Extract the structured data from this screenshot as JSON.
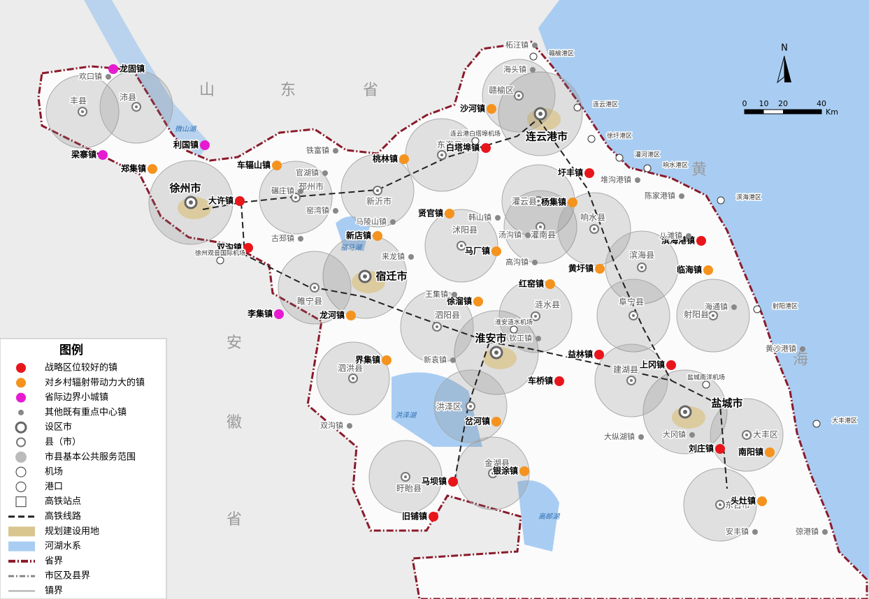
{
  "legend": {
    "title": "图例",
    "items": [
      "战略区位较好的镇",
      "对乡村辐射带动力大的镇",
      "省际边界小城镇",
      "其他既有重点中心镇",
      "设区市",
      "县（市）",
      "市县基本公共服务范围",
      "机场",
      "港口",
      "高铁站点",
      "高铁线路",
      "规划建设用地",
      "河湖水系",
      "省界",
      "市区及县界",
      "镇界"
    ]
  },
  "regions": [
    "山",
    "东",
    "省",
    "安",
    "徽",
    "省",
    "黄",
    "海"
  ],
  "cities": [
    "徐州市",
    "宿迁市",
    "淮安市",
    "连云港市",
    "盐城市"
  ],
  "counties": [
    "丰县",
    "沛县",
    "邳州市",
    "新沂市",
    "睢宁县",
    "东海县",
    "赣榆区",
    "灌云县",
    "灌南县",
    "沭阳县",
    "响水县",
    "滨海县",
    "阜宁县",
    "射阳县",
    "建湖县",
    "涟水县",
    "泗阳县",
    "泗洪县",
    "洪泽区",
    "金湖县",
    "盱眙县",
    "大丰区",
    "东台市"
  ],
  "red_towns": [
    "大许镇",
    "双沟镇",
    "白塔埠镇",
    "圩丰镇",
    "滨海港镇",
    "益林镇",
    "上冈镇",
    "车桥镇",
    "刘庄镇",
    "马坝镇",
    "旧铺镇"
  ],
  "orange_towns": [
    "郑集镇",
    "车辐山镇",
    "沙河镇",
    "桃林镇",
    "贤官镇",
    "新店镇",
    "马厂镇",
    "杨集镇",
    "黄圩镇",
    "临海镇",
    "徐溜镇",
    "红窑镇",
    "龙河镇",
    "界集镇",
    "岔河镇",
    "银涂镇",
    "南阳镇",
    "头灶镇"
  ],
  "border_towns": [
    "龙固镇",
    "利国镇",
    "梁寨镇",
    "李集镇"
  ],
  "other_towns": [
    "欢口镇",
    "柘汪镇",
    "海头镇",
    "铁富镇",
    "官湖镇",
    "碾庄镇",
    "窑湾镇",
    "古邳镇",
    "马陵山镇",
    "来龙镇",
    "韩山镇",
    "汤沟镇",
    "高沟镇",
    "堆沟港镇",
    "陈家港镇",
    "八滩镇",
    "王集镇",
    "钦工镇",
    "新袁镇",
    "双沟镇",
    "大纵湖镇",
    "大冈镇",
    "黄沙港镇",
    "海通镇",
    "安丰镇",
    "弶港镇"
  ],
  "ports": [
    "赣榆港区",
    "连云港区",
    "徐圩港区",
    "灌河港区",
    "响水港区",
    "滨海港区",
    "射阳港区",
    "大丰港区"
  ],
  "airports": [
    "连云港白塔埠机场",
    "徐州观音国际机场",
    "淮安涟水机场",
    "盐城南洋机场"
  ],
  "lakes": [
    "微山湖",
    "骆马湖",
    "洪泽湖",
    "高邮湖"
  ],
  "scale": {
    "ticks": [
      0,
      10,
      20,
      40
    ],
    "unit": "Km"
  },
  "north": "N"
}
